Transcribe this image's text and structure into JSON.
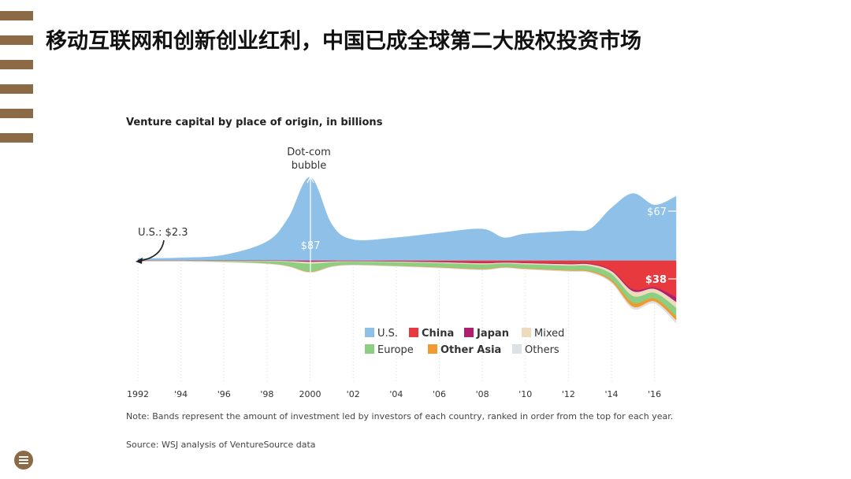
{
  "page": {
    "title": "移动互联网和创新创业红利，中国已成全球第二大股权投资市场"
  },
  "chart_data": {
    "type": "area",
    "title": "Venture capital by place of origin, in billions",
    "xlabel": "",
    "ylabel": "",
    "x_tick_labels": [
      "1992",
      "'94",
      "'96",
      "'98",
      "2000",
      "'02",
      "'04",
      "'06",
      "'08",
      "'10",
      "'12",
      "'14",
      "'16"
    ],
    "x": [
      1992,
      1994,
      1996,
      1998,
      1999,
      2000,
      2001,
      2002,
      2004,
      2006,
      2008,
      2009,
      2010,
      2012,
      2013,
      2014,
      2015,
      2016,
      2017
    ],
    "series": [
      {
        "name": "U.S.",
        "color": "#8fc1e8",
        "values": [
          2.3,
          3,
          6,
          20,
          45,
          87,
          38,
          22,
          24,
          29,
          33,
          24,
          28,
          31,
          33,
          55,
          70,
          58,
          67
        ]
      },
      {
        "name": "China",
        "color": "#e8393f",
        "values": [
          0,
          0,
          0,
          0,
          0,
          0.3,
          0.2,
          0.2,
          0.5,
          1,
          2,
          1.5,
          2,
          3,
          3,
          10,
          30,
          28,
          38
        ]
      },
      {
        "name": "Japan",
        "color": "#b01f6e",
        "values": [
          0.1,
          0.1,
          0.2,
          0.3,
          0.5,
          1,
          0.6,
          0.4,
          0.5,
          0.7,
          0.8,
          0.6,
          0.7,
          0.8,
          0.9,
          1,
          2,
          1.5,
          5
        ]
      },
      {
        "name": "Mixed",
        "color": "#ecdcbd",
        "values": [
          0.1,
          0.1,
          0.2,
          0.5,
          1,
          2,
          1,
          0.6,
          0.8,
          1,
          1.2,
          1,
          1.2,
          1.5,
          1.8,
          3,
          5,
          4,
          6
        ]
      },
      {
        "name": "Europe",
        "color": "#8ccf83",
        "values": [
          0.2,
          0.3,
          0.8,
          2,
          4,
          8,
          4,
          3,
          3.5,
          4,
          4.5,
          3.5,
          4,
          4.5,
          5,
          6,
          7,
          6,
          9
        ]
      },
      {
        "name": "Other Asia",
        "color": "#f19a2e",
        "values": [
          0,
          0,
          0.1,
          0.2,
          0.3,
          0.6,
          0.3,
          0.2,
          0.3,
          0.5,
          0.6,
          0.5,
          0.6,
          0.8,
          1,
          2,
          4,
          3,
          4
        ]
      },
      {
        "name": "Others",
        "color": "#dde1e3",
        "values": [
          0,
          0,
          0.1,
          0.2,
          0.3,
          0.5,
          0.3,
          0.2,
          0.3,
          0.4,
          0.5,
          0.4,
          0.5,
          0.6,
          0.7,
          1,
          2,
          2,
          3
        ]
      }
    ],
    "annotations": [
      {
        "text": "U.S.: $2.3"
      },
      {
        "text": "Dot-com"
      },
      {
        "text": "bubble"
      },
      {
        "text": "$87"
      },
      {
        "text": "$67"
      },
      {
        "text": "$38"
      }
    ],
    "grid": false,
    "legend_position": "bottom-center",
    "note": "Note: Bands represent the amount of investment led by investors of each country, ranked in order from the top for each year.",
    "source": "Source: WSJ analysis of VentureSource data"
  }
}
